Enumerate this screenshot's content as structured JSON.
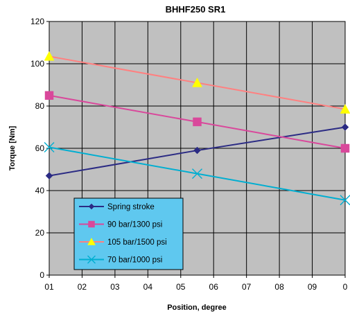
{
  "chart_data": {
    "type": "line",
    "title": "BHHF250 SR1",
    "xlabel": "Position, degree",
    "ylabel": "Torque [Nm]",
    "categories": [
      "01",
      "02",
      "03",
      "04",
      "05",
      "06",
      "07",
      "08",
      "09",
      "0"
    ],
    "xlim": [
      0,
      9
    ],
    "ylim": [
      0,
      120
    ],
    "yticks": [
      0,
      20,
      40,
      60,
      80,
      100,
      120
    ],
    "grid": true,
    "legend_position": "lower-left",
    "plot_background": "#c0c0c0",
    "series": [
      {
        "name": "Spring stroke",
        "color": "#2b2b84",
        "marker": "diamond",
        "x": [
          0,
          4.5,
          9
        ],
        "values": [
          47,
          59,
          70
        ]
      },
      {
        "name": "90 bar/1300 psi",
        "color": "#d9489b",
        "marker": "square",
        "x": [
          0,
          4.5,
          9
        ],
        "values": [
          85,
          72.5,
          60
        ]
      },
      {
        "name": "105 bar/1500 psi",
        "color": "#ff8080",
        "marker": "triangle",
        "x": [
          0,
          4.5,
          9
        ],
        "values": [
          103.5,
          91,
          78.5
        ]
      },
      {
        "name": "70 bar/1000 psi",
        "color": "#00aed1",
        "marker": "x",
        "x": [
          0,
          4.5,
          9
        ],
        "values": [
          60.5,
          48,
          35.5
        ]
      }
    ]
  },
  "legend": {
    "background": "#5fc8ef"
  }
}
